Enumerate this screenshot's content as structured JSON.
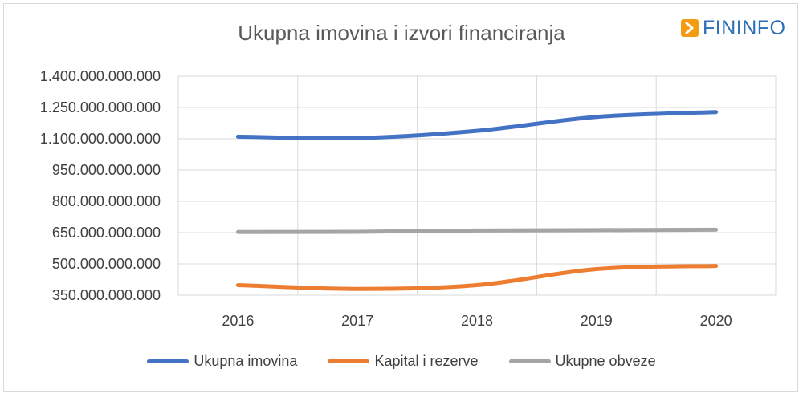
{
  "brand": {
    "name": "FININFO",
    "color": "#2c6fb7",
    "mark_color": "#f39c12",
    "mark_icon": "play-arrow-icon"
  },
  "chart_data": {
    "type": "line",
    "title": "Ukupna imovina i izvori financiranja",
    "xlabel": "",
    "ylabel": "",
    "categories": [
      "2016",
      "2017",
      "2018",
      "2019",
      "2020"
    ],
    "ylim": [
      350000000000,
      1400000000000
    ],
    "yticks": [
      350000000000,
      500000000000,
      650000000000,
      800000000000,
      950000000000,
      1100000000000,
      1250000000000,
      1400000000000
    ],
    "ytick_labels": [
      "350.000.000.000",
      "500.000.000.000",
      "650.000.000.000",
      "800.000.000.000",
      "950.000.000.000",
      "1.100.000.000.000",
      "1.250.000.000.000",
      "1.400.000.000.000"
    ],
    "grid": true,
    "legend_position": "bottom",
    "series": [
      {
        "name": "Ukupna imovina",
        "color": "#4472c4",
        "values": [
          1110000000000,
          1103000000000,
          1138000000000,
          1205000000000,
          1228000000000
        ]
      },
      {
        "name": "Kapital i rezerve",
        "color": "#ed7d31",
        "values": [
          398000000000,
          380000000000,
          398000000000,
          475000000000,
          490000000000
        ]
      },
      {
        "name": "Ukupne obveze",
        "color": "#a5a5a5",
        "values": [
          653000000000,
          654000000000,
          660000000000,
          662000000000,
          664000000000
        ]
      }
    ]
  }
}
